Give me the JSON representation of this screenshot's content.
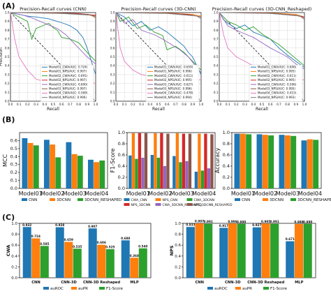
{
  "panel_labels": [
    "(A)",
    "(B)",
    "(C)"
  ],
  "chart_data": [
    {
      "type": "line",
      "title": "Precision-Recall curves (CNN)",
      "xlabel": "Recall",
      "ylabel": "Precision",
      "xlim": [
        0,
        1
      ],
      "ylim": [
        0,
        1
      ],
      "ticks": [
        "0.0",
        "0.1",
        "0.2",
        "0.3",
        "0.4",
        "0.5",
        "0.6",
        "0.7",
        "0.8",
        "0.9",
        "1.0"
      ],
      "grid": true,
      "legend": "lower-right",
      "series": [
        {
          "name": "Model01_CWA(AUC: 0.724)",
          "color": "#1f77b4",
          "x": [
            0,
            0.05,
            0.1,
            0.2,
            0.3,
            0.45,
            0.55,
            0.62,
            0.7,
            0.78,
            0.85,
            0.9,
            0.95,
            1.0
          ],
          "y": [
            1,
            0.99,
            0.98,
            0.96,
            0.95,
            0.93,
            0.9,
            0.88,
            0.85,
            0.8,
            0.72,
            0.6,
            0.45,
            0.3
          ]
        },
        {
          "name": "Model01_NPS(AUC: 0.997)",
          "color": "#ff7f0e",
          "x": [
            0,
            0.3,
            0.6,
            0.9,
            1.0
          ],
          "y": [
            1,
            1,
            0.99,
            0.98,
            0.95
          ]
        },
        {
          "name": "Model02_CWA(AUC: 0.691)",
          "color": "#2ca02c",
          "x": [
            0,
            0.1,
            0.2,
            0.25,
            0.3,
            0.45,
            0.5,
            0.55,
            0.6,
            0.7,
            0.8,
            0.9,
            1.0
          ],
          "y": [
            1,
            0.95,
            0.9,
            0.7,
            0.82,
            0.88,
            0.83,
            0.8,
            0.72,
            0.7,
            0.66,
            0.55,
            0.45
          ]
        },
        {
          "name": "Model02_NPS(AUC: 0.997)",
          "color": "#d62728",
          "x": [
            0,
            0.4,
            0.8,
            1.0
          ],
          "y": [
            1,
            1,
            0.99,
            0.97
          ]
        },
        {
          "name": "Model03_CWA(AUC: 0.690)",
          "color": "#9467bd",
          "x": [
            0,
            0.15,
            0.25,
            0.35,
            0.45,
            0.55,
            0.65,
            0.72,
            0.8,
            0.9,
            1.0
          ],
          "y": [
            1,
            0.97,
            0.94,
            0.9,
            0.86,
            0.82,
            0.75,
            0.68,
            0.6,
            0.5,
            0.42
          ]
        },
        {
          "name": "Model03_NPS(AUC: 0.997)",
          "color": "#8c564b",
          "x": [
            0,
            0.5,
            0.9,
            1.0
          ],
          "y": [
            1,
            1,
            0.98,
            0.96
          ]
        },
        {
          "name": "Model04_CWA(AUC: 0.589)",
          "color": "#e377c2",
          "x": [
            0,
            0.05,
            0.1,
            0.2,
            0.3,
            0.4,
            0.5,
            0.55,
            0.6,
            0.7,
            0.8,
            0.9,
            1.0
          ],
          "y": [
            1,
            0.7,
            0.5,
            0.35,
            0.25,
            0.22,
            0.2,
            0.35,
            0.22,
            0.2,
            0.24,
            0.22,
            0.2
          ]
        },
        {
          "name": "Model04_NPS(AUC: 0.996)",
          "color": "#7f7f7f",
          "x": [
            0,
            0.6,
            0.95,
            1.0
          ],
          "y": [
            1,
            0.99,
            0.97,
            0.94
          ]
        }
      ],
      "diagonal": true
    },
    {
      "type": "line",
      "title": "Precision-Recall curves (3D-CNN)",
      "xlabel": "Recall",
      "ylabel": "",
      "xlim": [
        0,
        1
      ],
      "ylim": [
        0,
        1
      ],
      "ticks": [
        "0.0",
        "0.1",
        "0.2",
        "0.3",
        "0.4",
        "0.5",
        "0.6",
        "0.7",
        "0.8",
        "0.9",
        "1.0"
      ],
      "grid": true,
      "legend": "lower-right",
      "series": [
        {
          "name": "Model01_CWA(AUC: 0.659)",
          "color": "#1f77b4",
          "x": [
            0,
            0.1,
            0.2,
            0.3,
            0.4,
            0.5,
            0.6,
            0.7,
            0.8,
            0.85,
            0.9,
            0.95,
            1.0
          ],
          "y": [
            1,
            0.95,
            0.85,
            0.9,
            0.8,
            0.84,
            0.78,
            0.7,
            0.62,
            0.55,
            0.5,
            0.4,
            0.3
          ]
        },
        {
          "name": "Model01_NPS(AUC: 0.996)",
          "color": "#ff7f0e",
          "x": [
            0,
            0.5,
            0.9,
            1.0
          ],
          "y": [
            1,
            1,
            0.98,
            0.96
          ]
        },
        {
          "name": "Model02_CWA(AUC: 0.611)",
          "color": "#2ca02c",
          "x": [
            0,
            0.05,
            0.15,
            0.25,
            0.35,
            0.45,
            0.55,
            0.6,
            0.7,
            0.8,
            0.9,
            1.0
          ],
          "y": [
            1,
            0.9,
            0.95,
            0.82,
            0.86,
            0.78,
            0.74,
            0.58,
            0.62,
            0.55,
            0.45,
            0.35
          ]
        },
        {
          "name": "Model02_NPS(AUC: 0.995)",
          "color": "#d62728",
          "x": [
            0,
            0.4,
            0.85,
            1.0
          ],
          "y": [
            1,
            1,
            0.98,
            0.95
          ]
        },
        {
          "name": "Model03_CWA(AUC: 0.627)",
          "color": "#9467bd",
          "x": [
            0,
            0.1,
            0.2,
            0.3,
            0.45,
            0.55,
            0.65,
            0.75,
            0.85,
            0.95,
            1.0
          ],
          "y": [
            1,
            0.88,
            0.92,
            0.8,
            0.75,
            0.7,
            0.64,
            0.58,
            0.5,
            0.38,
            0.32
          ]
        },
        {
          "name": "Model03_NPS(AUC: 0.996)",
          "color": "#8c564b",
          "x": [
            0,
            0.5,
            0.9,
            1.0
          ],
          "y": [
            1,
            1,
            0.97,
            0.95
          ]
        },
        {
          "name": "Model04_CWA(AUC: 0.478)",
          "color": "#e377c2",
          "x": [
            0,
            0.05,
            0.1,
            0.2,
            0.3,
            0.4,
            0.5,
            0.6,
            0.7,
            0.8,
            0.9,
            1.0
          ],
          "y": [
            1,
            0.6,
            0.45,
            0.35,
            0.3,
            0.28,
            0.27,
            0.28,
            0.26,
            0.27,
            0.25,
            0.24
          ]
        },
        {
          "name": "Model04_NPS(AUC: 0.994)",
          "color": "#7f7f7f",
          "x": [
            0,
            0.6,
            0.95,
            1.0
          ],
          "y": [
            1,
            0.99,
            0.96,
            0.93
          ]
        }
      ],
      "diagonal": true
    },
    {
      "type": "line",
      "title": "Precision-Recall curves (3D-CNN_Reshaped)",
      "xlabel": "Recall",
      "ylabel": "",
      "xlim": [
        0,
        1
      ],
      "ylim": [
        0,
        1
      ],
      "ticks": [
        "0.0",
        "0.1",
        "0.2",
        "0.3",
        "0.4",
        "0.5",
        "0.6",
        "0.7",
        "0.8",
        "0.9",
        "1.0"
      ],
      "grid": true,
      "legend": "lower-right",
      "series": [
        {
          "name": "Model01_CWA(AUC: 0.606)",
          "color": "#1f77b4",
          "x": [
            0,
            0.05,
            0.1,
            0.2,
            0.3,
            0.4,
            0.5,
            0.6,
            0.7,
            0.8,
            0.9,
            1.0
          ],
          "y": [
            1,
            0.92,
            0.88,
            0.82,
            0.86,
            0.78,
            0.74,
            0.7,
            0.6,
            0.52,
            0.45,
            0.38
          ]
        },
        {
          "name": "Model01_NPS(AUC: 0.995)",
          "color": "#ff7f0e",
          "x": [
            0,
            0.5,
            0.9,
            1.0
          ],
          "y": [
            1,
            1,
            0.98,
            0.95
          ]
        },
        {
          "name": "Model02_CWA(AUC: 0.611)",
          "color": "#2ca02c",
          "x": [
            0,
            0.1,
            0.2,
            0.3,
            0.4,
            0.5,
            0.6,
            0.7,
            0.8,
            0.9,
            1.0
          ],
          "y": [
            1,
            0.9,
            0.86,
            0.8,
            0.84,
            0.76,
            0.7,
            0.64,
            0.56,
            0.48,
            0.4
          ]
        },
        {
          "name": "Model02_NPS(AUC: 0.995)",
          "color": "#d62728",
          "x": [
            0,
            0.45,
            0.9,
            1.0
          ],
          "y": [
            1,
            1,
            0.97,
            0.94
          ]
        },
        {
          "name": "Model03_CWA(AUC: 0.596)",
          "color": "#9467bd",
          "x": [
            0,
            0.1,
            0.2,
            0.3,
            0.4,
            0.5,
            0.6,
            0.7,
            0.8,
            0.9,
            1.0
          ],
          "y": [
            1,
            0.85,
            0.8,
            0.76,
            0.72,
            0.66,
            0.6,
            0.55,
            0.5,
            0.42,
            0.36
          ]
        },
        {
          "name": "Model03_NPS(AUC: 0.995)",
          "color": "#8c564b",
          "x": [
            0,
            0.5,
            0.9,
            1.0
          ],
          "y": [
            1,
            1,
            0.97,
            0.95
          ]
        },
        {
          "name": "Model04_CWA(AUC: 0.415)",
          "color": "#e377c2",
          "x": [
            0,
            0.05,
            0.1,
            0.2,
            0.3,
            0.4,
            0.5,
            0.6,
            0.7,
            0.8,
            0.9,
            1.0
          ],
          "y": [
            1,
            0.75,
            0.6,
            0.5,
            0.45,
            0.4,
            0.3,
            0.28,
            0.26,
            0.27,
            0.25,
            0.24
          ]
        },
        {
          "name": "Model04_NPS(AUC: 0.993)",
          "color": "#7f7f7f",
          "x": [
            0,
            0.6,
            0.95,
            1.0
          ],
          "y": [
            1,
            0.99,
            0.96,
            0.92
          ]
        }
      ],
      "diagonal": true
    },
    {
      "type": "bar",
      "title": "",
      "xlabel": "",
      "ylabel": "MCC",
      "ylim": [
        0,
        0.7
      ],
      "yticks": [
        "0.0",
        "0.1",
        "0.2",
        "0.3",
        "0.4",
        "0.5",
        "0.6"
      ],
      "categories": [
        "Model01",
        "Model02",
        "Model03",
        "Model04"
      ],
      "series": [
        {
          "name": "CNN",
          "color": "#1f77b4",
          "values": [
            0.63,
            0.61,
            0.58,
            0.36
          ]
        },
        {
          "name": "3DCNN",
          "color": "#ff7f0e",
          "values": [
            0.57,
            0.55,
            0.43,
            0.33
          ]
        },
        {
          "name": "3DCNN_RESHAPED",
          "color": "#2ca02c",
          "values": [
            0.54,
            0.39,
            0.41,
            0.35
          ]
        }
      ],
      "legend": "bottom"
    },
    {
      "type": "bar",
      "title": "",
      "xlabel": "",
      "ylabel": "F1-Score",
      "ylim": [
        0,
        1.0
      ],
      "yticks": [
        "0.0",
        "0.2",
        "0.4",
        "0.6",
        "0.8",
        "1.0"
      ],
      "categories": [
        "Model01",
        "Model02",
        "Model03",
        "Model04"
      ],
      "series": [
        {
          "name": "CWA_CNN",
          "color": "#1f77b4",
          "values": [
            0.59,
            0.6,
            0.58,
            0.3
          ]
        },
        {
          "name": "NPS_CNN",
          "color": "#ff7f0e",
          "values": [
            0.99,
            0.99,
            0.99,
            0.98
          ]
        },
        {
          "name": "CWA_3DCNN",
          "color": "#2ca02c",
          "values": [
            0.53,
            0.55,
            0.47,
            0.32
          ]
        },
        {
          "name": "NPS_3DCNN",
          "color": "#d62728",
          "values": [
            0.99,
            0.99,
            0.98,
            0.98
          ]
        },
        {
          "name": "CWA_3DCNN_RESHAPED",
          "color": "#9467bd",
          "values": [
            0.55,
            0.4,
            0.49,
            0.36
          ]
        },
        {
          "name": "NPS_3DCNN_RESHAPED",
          "color": "#8c564b",
          "values": [
            0.99,
            0.98,
            0.98,
            0.97
          ]
        }
      ],
      "legend": "bottom"
    },
    {
      "type": "bar",
      "title": "",
      "xlabel": "",
      "ylabel": "Accuracy",
      "ylim": [
        0,
        1.0
      ],
      "yticks": [
        "0.0",
        "0.2",
        "0.4",
        "0.6",
        "0.8",
        "1.0"
      ],
      "categories": [
        "Model01",
        "Model02",
        "Model03",
        "Model04"
      ],
      "series": [
        {
          "name": "CNN",
          "color": "#1f77b4",
          "values": [
            0.98,
            0.97,
            0.96,
            0.86
          ]
        },
        {
          "name": "3DCNN",
          "color": "#ff7f0e",
          "values": [
            0.98,
            0.96,
            0.95,
            0.88
          ]
        },
        {
          "name": "3DCNN_RESHAPED",
          "color": "#2ca02c",
          "values": [
            0.97,
            0.95,
            0.94,
            0.87
          ]
        }
      ],
      "legend": "bottom"
    },
    {
      "type": "bar",
      "title": "",
      "xlabel": "",
      "ylabel": "CWA",
      "ylim": [
        0,
        1.0
      ],
      "yticks": [
        "0.0",
        "0.2",
        "0.4",
        "0.6",
        "0.8",
        "1.0"
      ],
      "categories": [
        "CNN",
        "CNN-3D",
        "CNN-3D Reshaped",
        "MLP"
      ],
      "series": [
        {
          "name": "auROC",
          "color": "#1f77b4",
          "values": [
            0.932,
            0.928,
            0.907,
            0.688
          ],
          "labels": [
            "0.932",
            "0.928",
            "0.907",
            "0.688"
          ]
        },
        {
          "name": "auPR",
          "color": "#ff7f0e",
          "values": [
            0.724,
            0.659,
            0.606,
            0.368
          ],
          "labels": [
            "0.724",
            "0.659",
            "0.606",
            "0.368"
          ]
        },
        {
          "name": "F1-Score",
          "color": "#2ca02c",
          "values": [
            0.585,
            0.535,
            0.525,
            0.54
          ],
          "labels": [
            "0.585",
            "0.535",
            "0.525",
            "0.540"
          ]
        }
      ],
      "legend": "bottom"
    },
    {
      "type": "bar",
      "title": "",
      "xlabel": "",
      "ylabel": "NPS",
      "ylim": [
        0,
        1.0
      ],
      "yticks": [
        "0.0",
        "0.2",
        "0.4",
        "0.6",
        "0.8",
        "1.0"
      ],
      "categories": [
        "CNN",
        "CNN-3D",
        "CNN-3D Reshaped",
        "MLP"
      ],
      "series": [
        {
          "name": "auROC",
          "color": "#1f77b4",
          "values": [
            0.933,
            0.917,
            0.927,
            0.671
          ],
          "labels": [
            "0.933",
            "0.917",
            "0.927",
            "0.671"
          ]
        },
        {
          "name": "auPR",
          "color": "#ff7f0e",
          "values": [
            0.997,
            0.996,
            0.995,
            0.988
          ],
          "labels": [
            "0.997",
            "0.996",
            "0.995",
            "0.988"
          ]
        },
        {
          "name": "F1-Score",
          "color": "#2ca02c",
          "values": [
            0.991,
            0.99,
            0.991,
            0.99
          ],
          "labels": [
            "0.991",
            "0.990",
            "0.991",
            "0.990"
          ]
        }
      ],
      "legend": "bottom"
    }
  ]
}
